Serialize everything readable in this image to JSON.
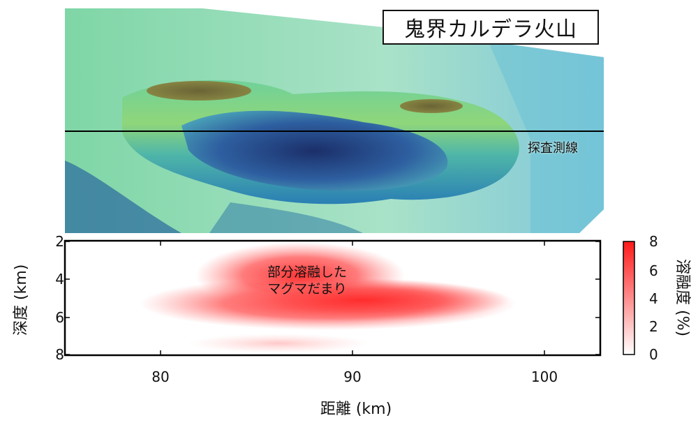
{
  "title": "鬼界カルデラ火山",
  "survey_line_label": "探査測線",
  "section": {
    "annotation_line1": "部分溶融した",
    "annotation_line2": "マグマだまり",
    "x_axis": {
      "label": "距離 (km)",
      "ticks": [
        "80",
        "90",
        "100"
      ]
    },
    "y_axis": {
      "label": "深度 (km)",
      "ticks": [
        "2",
        "4",
        "6",
        "8"
      ]
    }
  },
  "colorbar": {
    "label": "溶融度 (%)",
    "ticks": [
      "0",
      "2",
      "4",
      "6",
      "8"
    ],
    "colors": {
      "low": "#ffffff",
      "high": "#ff1a1a"
    }
  }
}
